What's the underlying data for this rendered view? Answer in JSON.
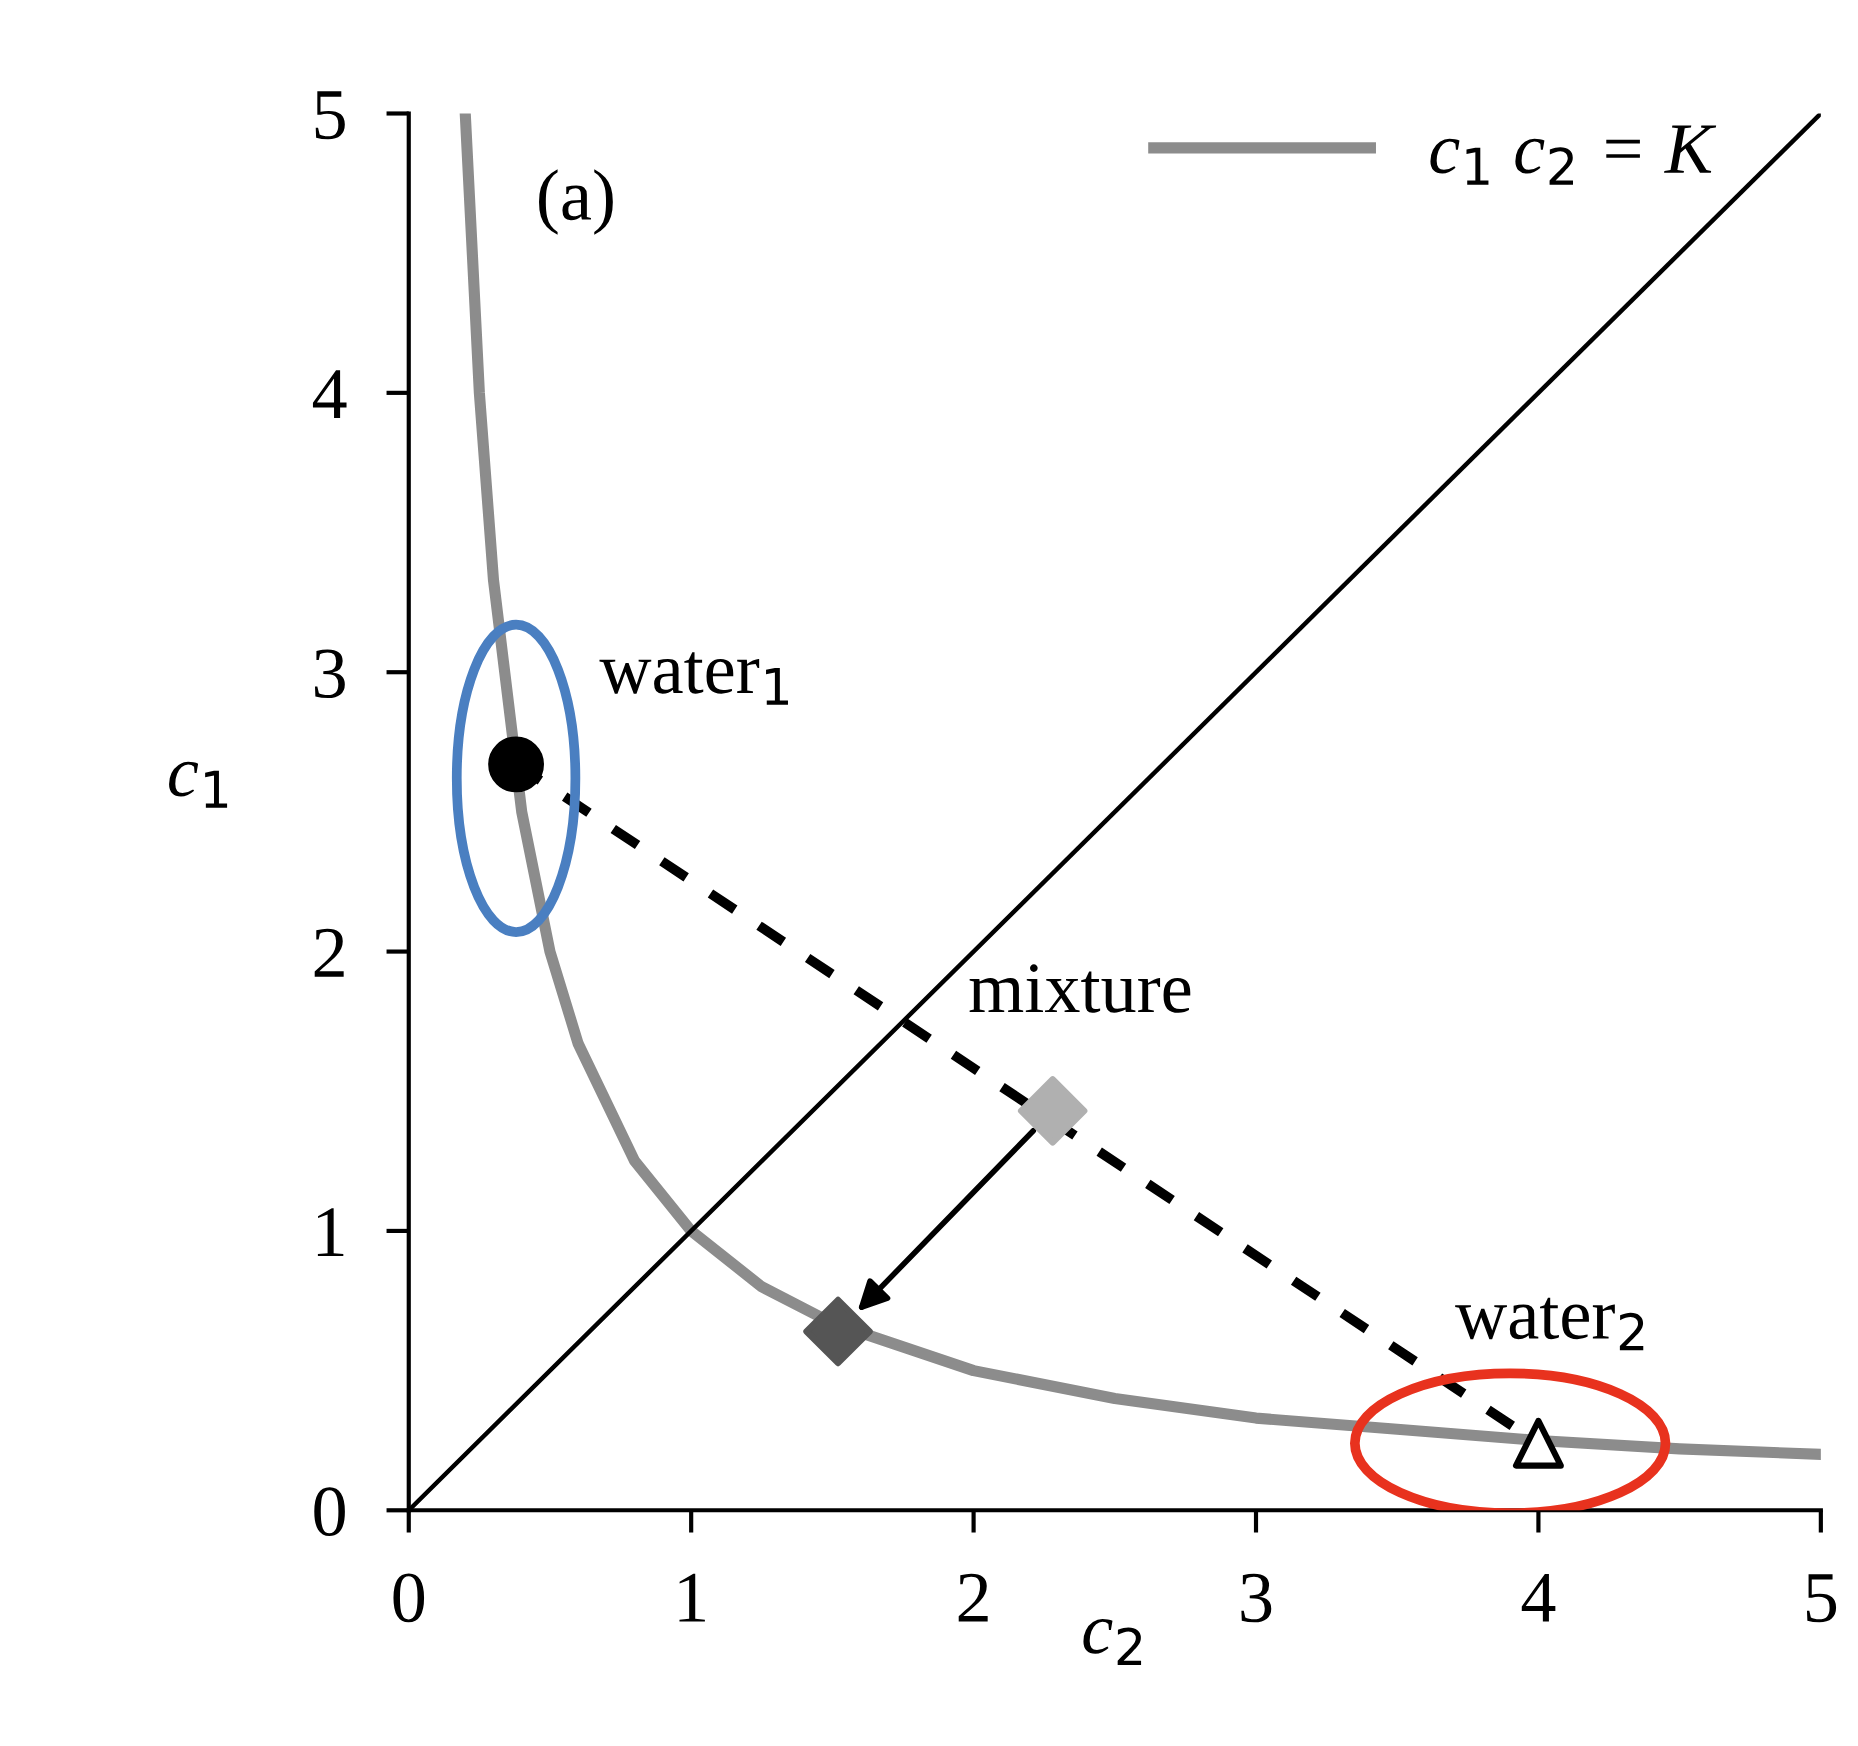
{
  "chart_data": {
    "type": "line",
    "xlabel": "c$_{2}$",
    "ylabel": "c$_{1}$",
    "xlim": [
      0,
      5
    ],
    "ylim": [
      0,
      5
    ],
    "xticks": [
      0,
      1,
      2,
      3,
      4,
      5
    ],
    "yticks": [
      0,
      1,
      2,
      3,
      4,
      5
    ],
    "grid": false,
    "legend": "top right",
    "annotations": [
      "(a)",
      {
        "text": "water$_{1}$",
        "x": 0.38,
        "y": 2.67
      },
      {
        "text": "mixture",
        "x": 2.28,
        "y": 1.43
      },
      {
        "text": "water$_{2}$",
        "x": 4.0,
        "y": 0.24
      }
    ],
    "series": [
      {
        "name": "c$_{1}$ c$_{2}$ = K",
        "color": "#8c8c8c",
        "x": [
          0.2,
          0.25,
          0.3,
          0.4,
          0.5,
          0.6,
          0.8,
          1,
          1.25,
          1.5,
          2,
          2.5,
          3,
          3.5,
          4,
          4.5,
          5
        ],
        "values": [
          5,
          4,
          3.33,
          2.5,
          2,
          1.67,
          1.25,
          1,
          0.8,
          0.67,
          0.5,
          0.4,
          0.33,
          0.29,
          0.25,
          0.22,
          0.2
        ]
      },
      {
        "color": "#000000",
        "x": [
          0,
          5
        ],
        "values": [
          0,
          5
        ]
      },
      {
        "color": "#000000",
        "line_style": "dashed",
        "x": [
          0.38,
          4.0
        ],
        "values": [
          2.67,
          0.24
        ]
      },
      {
        "type": "scatter",
        "color": "#000000",
        "marker": "circle",
        "x": [
          0.38
        ],
        "values": [
          2.67
        ]
      },
      {
        "type": "scatter",
        "color": "#b0b0b0",
        "marker": "diamond",
        "x": [
          2.28
        ],
        "values": [
          1.43
        ]
      },
      {
        "type": "scatter",
        "color": "#555555",
        "marker": "diamond",
        "x": [
          1.52
        ],
        "values": [
          0.64
        ]
      },
      {
        "type": "scatter",
        "color": "#000000",
        "marker": "triangle",
        "x": [
          4.0
        ],
        "values": [
          0.24
        ]
      }
    ]
  }
}
